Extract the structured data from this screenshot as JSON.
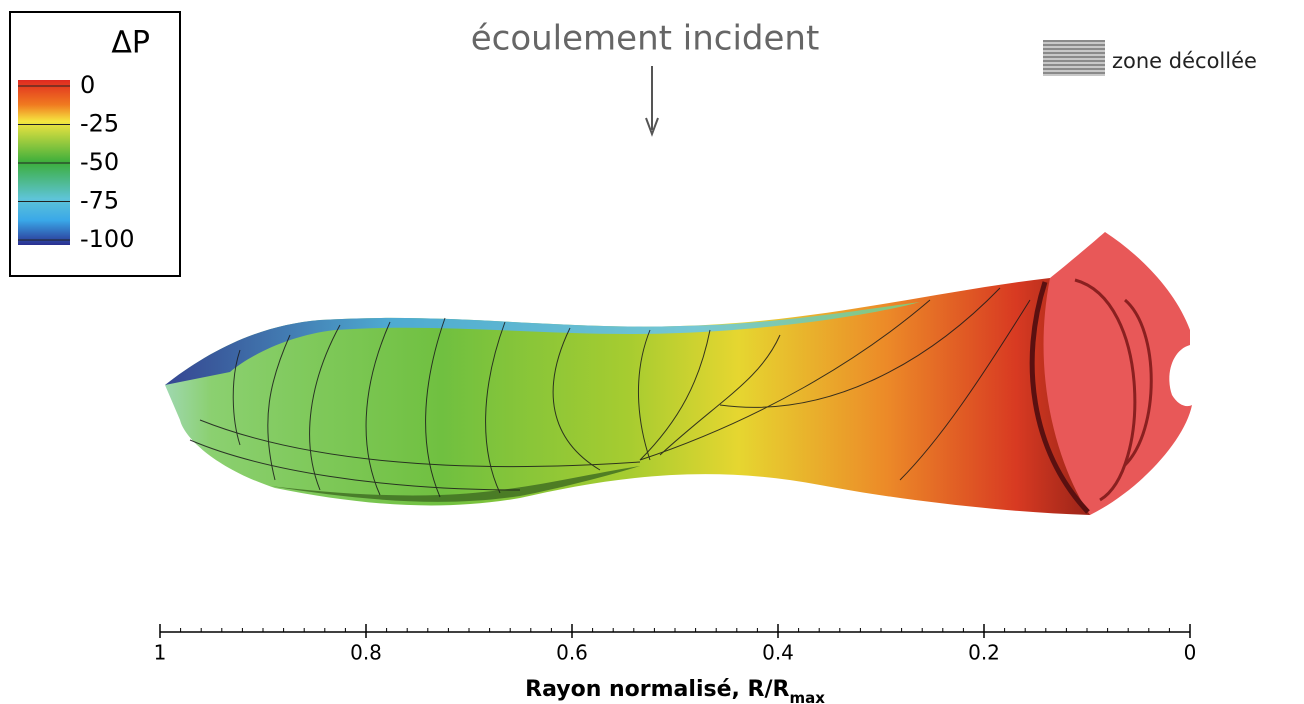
{
  "legend": {
    "title": "ΔP",
    "min": -100,
    "max": 0,
    "ticks": [
      0,
      -25,
      -50,
      -75,
      -100
    ]
  },
  "annotation": {
    "text": "écoulement incident"
  },
  "zone_legend": {
    "label": "zone décollée"
  },
  "axis": {
    "lim": [
      1,
      0
    ],
    "ticks": [
      1,
      0.8,
      0.6,
      0.4,
      0.2,
      0
    ],
    "label": "Rayon normalisé, R/R",
    "label_sub": "max"
  }
}
